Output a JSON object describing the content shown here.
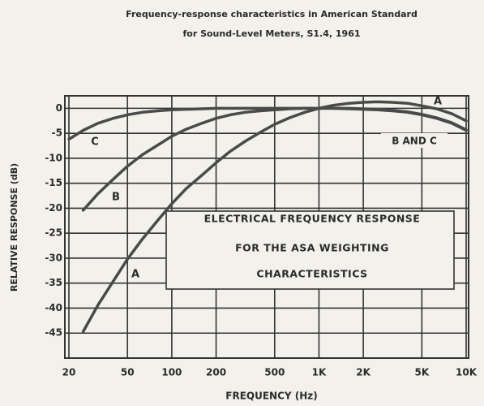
{
  "chart_data": {
    "type": "line",
    "title": [
      "Frequency-response characteristics in American Standard",
      "for Sound-Level Meters, S1.4, 1961"
    ],
    "x_label": "FREQUENCY (Hz)",
    "y_label": "RELATIVE RESPONSE (dB)",
    "annotations": [
      "B AND C",
      "ELECTRICAL FREQUENCY RESPONSE",
      "FOR THE ASA WEIGHTING",
      "CHARACTERISTICS"
    ],
    "x": [
      20,
      25,
      31.5,
      40,
      50,
      63,
      80,
      100,
      125,
      160,
      200,
      250,
      315,
      400,
      500,
      630,
      800,
      1000,
      1250,
      1600,
      2000,
      2500,
      3150,
      4000,
      5000,
      6300,
      8000,
      10000
    ],
    "series": [
      {
        "name": "A",
        "color": "#4a4a4a",
        "values": [
          null,
          -44.7,
          -39.4,
          -34.6,
          -30.2,
          -26.2,
          -22.5,
          -19.1,
          -16.1,
          -13.4,
          -10.9,
          -8.6,
          -6.6,
          -4.8,
          -3.2,
          -1.9,
          -0.8,
          0,
          0.6,
          1.0,
          1.2,
          1.3,
          1.2,
          1.0,
          0.5,
          -0.1,
          -1.1,
          -2.5
        ]
      },
      {
        "name": "B",
        "color": "#4a4a4a",
        "values": [
          null,
          -20.4,
          -17.1,
          -14.2,
          -11.6,
          -9.3,
          -7.4,
          -5.6,
          -4.2,
          -3.0,
          -2.0,
          -1.3,
          -0.8,
          -0.5,
          -0.3,
          -0.1,
          0,
          0,
          0,
          0,
          -0.1,
          -0.2,
          -0.4,
          -0.7,
          -1.2,
          -1.9,
          -2.9,
          -4.3
        ]
      },
      {
        "name": "C",
        "color": "#4a4a4a",
        "values": [
          -6.2,
          -4.4,
          -3.0,
          -2.0,
          -1.3,
          -0.8,
          -0.5,
          -0.3,
          -0.2,
          -0.1,
          0,
          0,
          0,
          0,
          0,
          0,
          0,
          0,
          0,
          -0.1,
          -0.2,
          -0.3,
          -0.5,
          -0.8,
          -1.3,
          -2.0,
          -3.0,
          -4.4
        ]
      }
    ],
    "xscale": "log",
    "xlim": [
      20,
      10000
    ],
    "xticks": [
      20,
      50,
      100,
      200,
      500,
      {
        "value": 1000,
        "label": "1K"
      },
      {
        "value": 2000,
        "label": "2K"
      },
      {
        "value": 5000,
        "label": "5K"
      },
      {
        "value": 10000,
        "label": "10K"
      }
    ],
    "ylim": [
      -50,
      2.5
    ],
    "yticks": [
      0,
      -5,
      -10,
      -15,
      -20,
      -25,
      -30,
      -35,
      -40,
      -45
    ],
    "grid": true
  }
}
